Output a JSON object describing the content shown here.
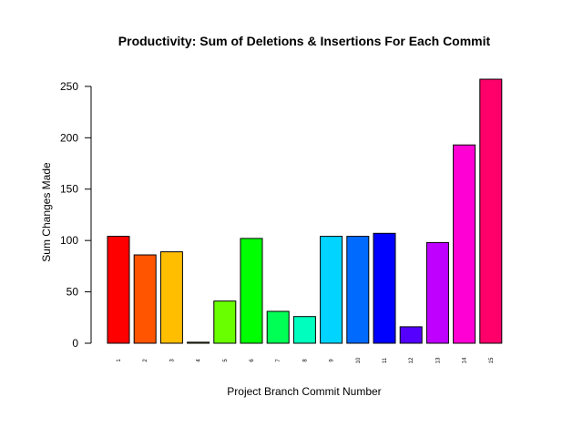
{
  "chart_data": {
    "type": "bar",
    "title": "Productivity: Sum of Deletions & Insertions For Each Commit",
    "xlabel": "Project Branch Commit Number",
    "ylabel": "Sum Changes Made",
    "categories": [
      "1",
      "2",
      "3",
      "4",
      "5",
      "6",
      "7",
      "8",
      "9",
      "10",
      "11",
      "12",
      "13",
      "14",
      "15"
    ],
    "values": [
      104,
      86,
      89,
      1,
      41,
      102,
      31,
      26,
      104,
      104,
      107,
      16,
      98,
      193,
      257
    ],
    "colors": [
      "#FF0000",
      "#FF5500",
      "#FFBF00",
      "#D4FF00",
      "#6AFF00",
      "#00FF00",
      "#00FF55",
      "#00FFBF",
      "#00D4FF",
      "#006AFF",
      "#0000FF",
      "#5500FF",
      "#BF00FF",
      "#FF00D4",
      "#FF006A"
    ],
    "ylim": [
      0,
      257
    ],
    "yticks": [
      0,
      50,
      100,
      150,
      200,
      250
    ],
    "grid": false,
    "legend": "none"
  }
}
